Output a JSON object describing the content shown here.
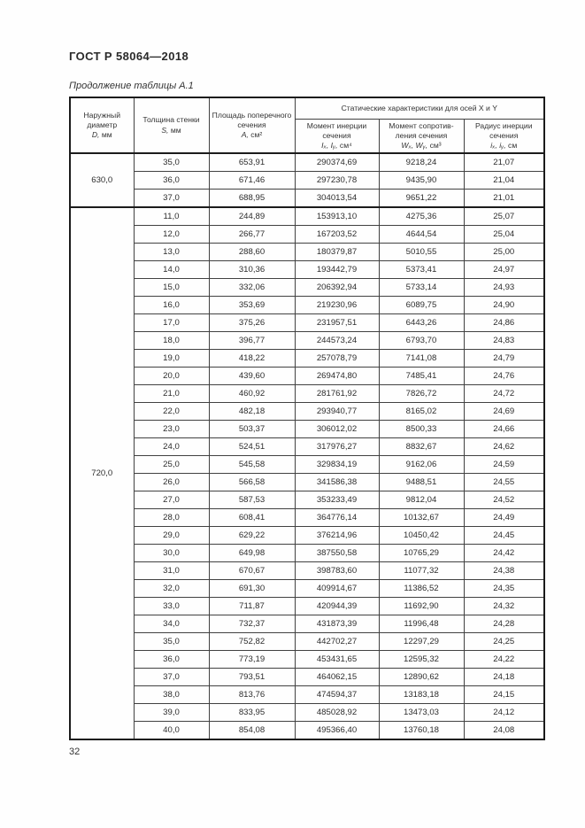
{
  "page": {
    "doc_number": "ГОСТ Р 58064—2018",
    "table_caption": "Продолжение таблицы А.1",
    "page_number": "32"
  },
  "table": {
    "headers": {
      "col_diameter": {
        "title": "Наружный диаметр",
        "vars": "D,",
        "unit": "мм"
      },
      "col_thickness": {
        "title": "Толщина стенки",
        "vars": "S,",
        "unit": "мм"
      },
      "col_area": {
        "title": "Площадь поперечного сечения",
        "vars": "A,",
        "unit": "см²"
      },
      "group_static": "Статические характеристики для осей X и Y",
      "col_inertia": {
        "title": "Момент инерции сечения",
        "vars": "Iₓ, Iᵧ,",
        "unit": "см⁴"
      },
      "col_modulus": {
        "title": "Момент сопротив- ления сечения",
        "vars": "Wₓ, Wᵧ,",
        "unit": "см³"
      },
      "col_radius": {
        "title": "Радиус инерции сечения",
        "vars": "iₓ, iᵧ,",
        "unit": "см"
      }
    },
    "sections": [
      {
        "diameter": "630,0",
        "rows": [
          [
            "35,0",
            "653,91",
            "290374,69",
            "9218,24",
            "21,07"
          ],
          [
            "36,0",
            "671,46",
            "297230,78",
            "9435,90",
            "21,04"
          ],
          [
            "37,0",
            "688,95",
            "304013,54",
            "9651,22",
            "21,01"
          ]
        ]
      },
      {
        "diameter": "720,0",
        "rows": [
          [
            "11,0",
            "244,89",
            "153913,10",
            "4275,36",
            "25,07"
          ],
          [
            "12,0",
            "266,77",
            "167203,52",
            "4644,54",
            "25,04"
          ],
          [
            "13,0",
            "288,60",
            "180379,87",
            "5010,55",
            "25,00"
          ],
          [
            "14,0",
            "310,36",
            "193442,79",
            "5373,41",
            "24,97"
          ],
          [
            "15,0",
            "332,06",
            "206392,94",
            "5733,14",
            "24,93"
          ],
          [
            "16,0",
            "353,69",
            "219230,96",
            "6089,75",
            "24,90"
          ],
          [
            "17,0",
            "375,26",
            "231957,51",
            "6443,26",
            "24,86"
          ],
          [
            "18,0",
            "396,77",
            "244573,24",
            "6793,70",
            "24,83"
          ],
          [
            "19,0",
            "418,22",
            "257078,79",
            "7141,08",
            "24,79"
          ],
          [
            "20,0",
            "439,60",
            "269474,80",
            "7485,41",
            "24,76"
          ],
          [
            "21,0",
            "460,92",
            "281761,92",
            "7826,72",
            "24,72"
          ],
          [
            "22,0",
            "482,18",
            "293940,77",
            "8165,02",
            "24,69"
          ],
          [
            "23,0",
            "503,37",
            "306012,02",
            "8500,33",
            "24,66"
          ],
          [
            "24,0",
            "524,51",
            "317976,27",
            "8832,67",
            "24,62"
          ],
          [
            "25,0",
            "545,58",
            "329834,19",
            "9162,06",
            "24,59"
          ],
          [
            "26,0",
            "566,58",
            "341586,38",
            "9488,51",
            "24,55"
          ],
          [
            "27,0",
            "587,53",
            "353233,49",
            "9812,04",
            "24,52"
          ],
          [
            "28,0",
            "608,41",
            "364776,14",
            "10132,67",
            "24,49"
          ],
          [
            "29,0",
            "629,22",
            "376214,96",
            "10450,42",
            "24,45"
          ],
          [
            "30,0",
            "649,98",
            "387550,58",
            "10765,29",
            "24,42"
          ],
          [
            "31,0",
            "670,67",
            "398783,60",
            "11077,32",
            "24,38"
          ],
          [
            "32,0",
            "691,30",
            "409914,67",
            "11386,52",
            "24,35"
          ],
          [
            "33,0",
            "711,87",
            "420944,39",
            "11692,90",
            "24,32"
          ],
          [
            "34,0",
            "732,37",
            "431873,39",
            "11996,48",
            "24,28"
          ],
          [
            "35,0",
            "752,82",
            "442702,27",
            "12297,29",
            "24,25"
          ],
          [
            "36,0",
            "773,19",
            "453431,65",
            "12595,32",
            "24,22"
          ],
          [
            "37,0",
            "793,51",
            "464062,15",
            "12890,62",
            "24,18"
          ],
          [
            "38,0",
            "813,76",
            "474594,37",
            "13183,18",
            "24,15"
          ],
          [
            "39,0",
            "833,95",
            "485028,92",
            "13473,03",
            "24,12"
          ],
          [
            "40,0",
            "854,08",
            "495366,40",
            "13760,18",
            "24,08"
          ]
        ]
      }
    ]
  }
}
